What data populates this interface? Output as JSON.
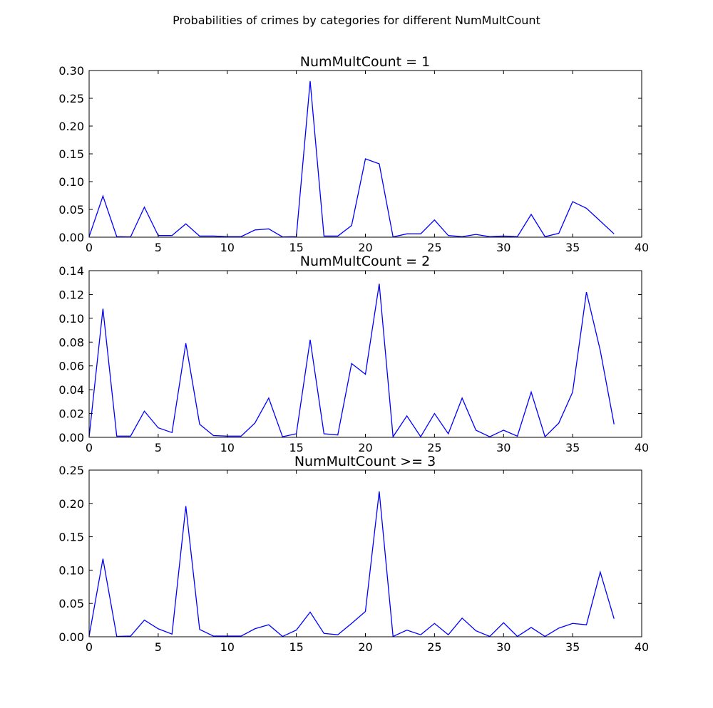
{
  "figure": {
    "suptitle": "Probabilities of crimes by categories for different NumMultCount"
  },
  "chart_data": [
    {
      "type": "line",
      "title": "NumMultCount = 1",
      "xlim": [
        0,
        40
      ],
      "ylim": [
        0,
        0.3
      ],
      "xticks": [
        "0",
        "5",
        "10",
        "15",
        "20",
        "25",
        "30",
        "35",
        "40"
      ],
      "yticks": [
        "0.00",
        "0.05",
        "0.10",
        "0.15",
        "0.20",
        "0.25",
        "0.30"
      ],
      "line_color": "#0000ff",
      "x": [
        0,
        1,
        2,
        3,
        4,
        5,
        6,
        7,
        8,
        9,
        10,
        11,
        12,
        13,
        14,
        15,
        16,
        17,
        18,
        19,
        20,
        21,
        22,
        23,
        24,
        25,
        26,
        27,
        28,
        29,
        30,
        31,
        32,
        33,
        34,
        35,
        36,
        37,
        38
      ],
      "y": [
        0.001,
        0.074,
        0.001,
        0.0005,
        0.054,
        0.003,
        0.003,
        0.024,
        0.002,
        0.002,
        0.001,
        0.001,
        0.013,
        0.015,
        0.0005,
        0.001,
        0.281,
        0.002,
        0.002,
        0.021,
        0.141,
        0.132,
        0.0005,
        0.006,
        0.006,
        0.031,
        0.003,
        0.001,
        0.005,
        0.001,
        0.002,
        0.001,
        0.041,
        0.001,
        0.007,
        0.064,
        0.052,
        0.029,
        0.006
      ]
    },
    {
      "type": "line",
      "title": "NumMultCount = 2",
      "xlim": [
        0,
        40
      ],
      "ylim": [
        0,
        0.14
      ],
      "xticks": [
        "0",
        "5",
        "10",
        "15",
        "20",
        "25",
        "30",
        "35",
        "40"
      ],
      "yticks": [
        "0.00",
        "0.02",
        "0.04",
        "0.06",
        "0.08",
        "0.10",
        "0.12",
        "0.14"
      ],
      "line_color": "#0000ff",
      "x": [
        0,
        1,
        2,
        3,
        4,
        5,
        6,
        7,
        8,
        9,
        10,
        11,
        12,
        13,
        14,
        15,
        16,
        17,
        18,
        19,
        20,
        21,
        22,
        23,
        24,
        25,
        26,
        27,
        28,
        29,
        30,
        31,
        32,
        33,
        34,
        35,
        36,
        37,
        38
      ],
      "y": [
        0.0005,
        0.108,
        0.001,
        0.001,
        0.022,
        0.008,
        0.004,
        0.079,
        0.011,
        0.0015,
        0.001,
        0.001,
        0.012,
        0.033,
        0.0005,
        0.003,
        0.082,
        0.003,
        0.002,
        0.062,
        0.053,
        0.129,
        0.0005,
        0.018,
        0.0005,
        0.02,
        0.003,
        0.033,
        0.006,
        0.0005,
        0.006,
        0.001,
        0.038,
        0.0005,
        0.012,
        0.038,
        0.122,
        0.073,
        0.011
      ]
    },
    {
      "type": "line",
      "title": "NumMultCount >= 3",
      "xlim": [
        0,
        40
      ],
      "ylim": [
        0,
        0.25
      ],
      "xticks": [
        "0",
        "5",
        "10",
        "15",
        "20",
        "25",
        "30",
        "35",
        "40"
      ],
      "yticks": [
        "0.00",
        "0.05",
        "0.10",
        "0.15",
        "0.20",
        "0.25"
      ],
      "line_color": "#0000ff",
      "x": [
        0,
        1,
        2,
        3,
        4,
        5,
        6,
        7,
        8,
        9,
        10,
        11,
        12,
        13,
        14,
        15,
        16,
        17,
        18,
        19,
        20,
        21,
        22,
        23,
        24,
        25,
        26,
        27,
        28,
        29,
        30,
        31,
        32,
        33,
        34,
        35,
        36,
        37,
        38
      ],
      "y": [
        0.001,
        0.117,
        0.0005,
        0.001,
        0.025,
        0.012,
        0.004,
        0.196,
        0.011,
        0.001,
        0.001,
        0.001,
        0.012,
        0.018,
        0.0005,
        0.01,
        0.037,
        0.005,
        0.003,
        0.02,
        0.038,
        0.218,
        0.0005,
        0.01,
        0.003,
        0.02,
        0.003,
        0.028,
        0.009,
        0.0005,
        0.021,
        0.0005,
        0.014,
        0.0005,
        0.013,
        0.02,
        0.018,
        0.097,
        0.027
      ]
    }
  ]
}
